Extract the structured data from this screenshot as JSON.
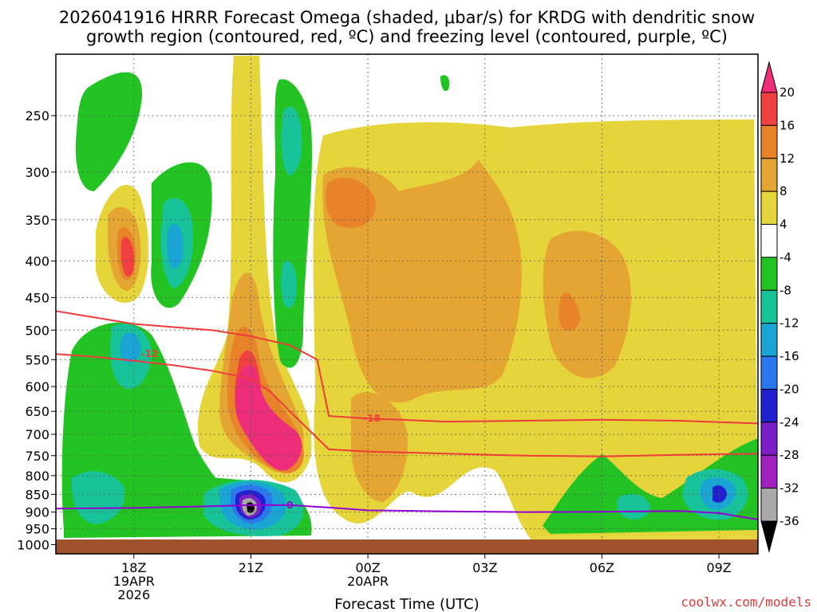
{
  "title_line1": "2026041916 HRRR Forecast Omega (shaded, μbar/s) for KRDG with dendritic snow",
  "title_line2": "growth region (contoured, red, ºC) and freezing level (contoured, purple, ºC)",
  "credit": "coolwx.com/models",
  "colors": {
    "ground": "#a0522d",
    "dgz_contour": "#ee3b3b",
    "freezing_contour": "#9400d3",
    "grid": "#555555"
  },
  "chart_data": {
    "type": "heatmap",
    "title": "2026041916 HRRR Forecast Omega (shaded, μbar/s) for KRDG with dendritic snow growth region (contoured, red, ºC) and freezing level (contoured, purple, ºC)",
    "xlabel": "Forecast Time (UTC)",
    "ylabel": "",
    "y_scale": "log-pressure (hPa), inverted",
    "y_ticks": [
      250,
      300,
      350,
      400,
      450,
      500,
      550,
      600,
      650,
      700,
      750,
      800,
      850,
      900,
      950,
      1000
    ],
    "x_ticks": [
      {
        "hour": 18,
        "lines": [
          "18Z",
          "19APR",
          "2026"
        ]
      },
      {
        "hour": 21,
        "lines": [
          "21Z"
        ]
      },
      {
        "hour": 24,
        "lines": [
          "00Z",
          "20APR"
        ]
      },
      {
        "hour": 27,
        "lines": [
          "03Z"
        ]
      },
      {
        "hour": 30,
        "lines": [
          "06Z"
        ]
      },
      {
        "hour": 33,
        "lines": [
          "09Z"
        ]
      }
    ],
    "x_range_hours": [
      16,
      34
    ],
    "y_range_hpa": [
      205,
      1030
    ],
    "grid": true,
    "colorbar": {
      "levels": [
        20,
        16,
        12,
        8,
        4,
        -4,
        -8,
        -12,
        -16,
        -20,
        -24,
        -28,
        -32,
        -36
      ],
      "colors": [
        "#ee2d7a",
        "#f04040",
        "#e8832a",
        "#e5a532",
        "#e6d53a",
        "#ffffff",
        "#22c322",
        "#19c39a",
        "#1aa5d5",
        "#2b78ee",
        "#2020d0",
        "#7a1fc8",
        "#a020c0",
        "#a9a9a9",
        "#000000"
      ]
    },
    "features": [
      {
        "kind": "omega",
        "value_range": "4 to 8",
        "description_hours": [
          23.6,
          33.9
        ],
        "hpa": [
          265,
          960
        ]
      },
      {
        "kind": "omega",
        "value_range": "8 to 20",
        "center_hour": 21.1,
        "center_hpa": 680
      },
      {
        "kind": "omega",
        "value_range": "-36 to -4",
        "center_hour": 21.0,
        "center_hpa": 905
      },
      {
        "kind": "omega",
        "value_range": "-24 to -4",
        "center_hour": 32.9,
        "center_hpa": 870
      }
    ],
    "contours": [
      {
        "name": "-12",
        "kind": "dendritic",
        "label_hour": 18.4,
        "label_hpa": 540,
        "x_hours": [
          16,
          17,
          18,
          19,
          20,
          21,
          21.5,
          22,
          23,
          24,
          26,
          28,
          30,
          32,
          34
        ],
        "hpa": [
          540,
          545,
          552,
          560,
          570,
          585,
          610,
          650,
          735,
          740,
          745,
          750,
          752,
          748,
          745
        ]
      },
      {
        "name": "-18",
        "kind": "dendritic",
        "label_hour": 24.1,
        "label_hpa": 665,
        "x_hours": [
          16,
          18,
          20,
          21,
          22,
          22.7,
          23,
          24,
          26,
          28,
          30,
          32,
          34
        ],
        "hpa": [
          470,
          490,
          500,
          510,
          525,
          550,
          660,
          665,
          672,
          670,
          668,
          670,
          676
        ]
      },
      {
        "name": "0",
        "kind": "freezing",
        "label_hour": 22.0,
        "label_hpa": 880,
        "x_hours": [
          16,
          18,
          20,
          21,
          22,
          23,
          24,
          26,
          28,
          30,
          32,
          33,
          34
        ],
        "hpa": [
          890,
          888,
          883,
          880,
          880,
          887,
          895,
          898,
          900,
          899,
          897,
          903,
          922
        ]
      }
    ]
  }
}
